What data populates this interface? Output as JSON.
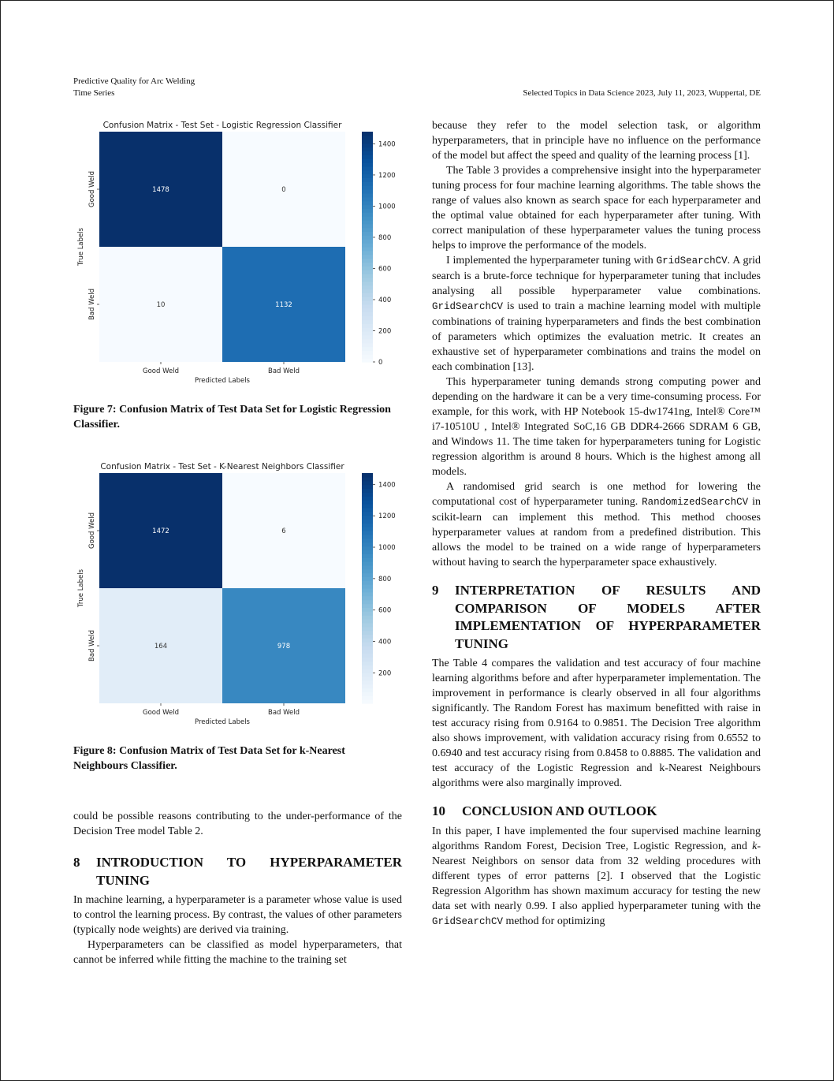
{
  "header": {
    "left_line1": "Predictive Quality for Arc Welding",
    "left_line2": "Time Series",
    "right": "Selected Topics in Data Science 2023, July 11, 2023, Wuppertal, DE"
  },
  "figure7": {
    "caption": "Figure 7: Confusion Matrix of Test Data Set for Logistic Regression Classifier.",
    "chart_data": {
      "type": "heatmap",
      "title": "Confusion Matrix - Test Set - Logistic Regression Classifier",
      "xlabel": "Predicted Labels",
      "ylabel": "True Labels",
      "x_categories": [
        "Good Weld",
        "Bad Weld"
      ],
      "y_categories": [
        "Good Weld",
        "Bad Weld"
      ],
      "values": [
        [
          1478,
          0
        ],
        [
          10,
          1132
        ]
      ],
      "colorbar_ticks": [
        0,
        200,
        400,
        600,
        800,
        1000,
        1200,
        1400
      ],
      "colorbar_range": [
        0,
        1478
      ],
      "colormap": "Blues"
    }
  },
  "figure8": {
    "caption": "Figure 8: Confusion Matrix of Test Data Set for k-Nearest Neighbours Classifier.",
    "chart_data": {
      "type": "heatmap",
      "title": "Confusion Matrix - Test Set - K-Nearest Neighbors Classifier",
      "xlabel": "Predicted Labels",
      "ylabel": "True Labels",
      "x_categories": [
        "Good Weld",
        "Bad Weld"
      ],
      "y_categories": [
        "Good Weld",
        "Bad Weld"
      ],
      "values": [
        [
          1472,
          6
        ],
        [
          164,
          978
        ]
      ],
      "colorbar_ticks": [
        200,
        400,
        600,
        800,
        1000,
        1200,
        1400
      ],
      "colorbar_range": [
        6,
        1472
      ],
      "colormap": "Blues"
    }
  },
  "left_text": {
    "p1": "could be possible reasons contributing to the under-performance of the Decision Tree model Table 2.",
    "sec8_num": "8",
    "sec8_title": "INTRODUCTION TO HYPERPARAMETER TUNING",
    "p2": "In machine learning, a hyperparameter is a parameter whose value is used to control the learning process. By contrast, the values of other parameters (typically node weights) are derived via training.",
    "p3": "Hyperparameters can be classified as model hyperparameters, that cannot be inferred while fitting the machine to the training set"
  },
  "right_text": {
    "p1": "because they refer to the model selection task, or algorithm hyperparameters, that in principle have no influence on the performance of the model but affect the speed and quality of the learning process [1].",
    "p2": "The Table 3 provides a comprehensive insight into the hyperparameter tuning process for four machine learning algorithms. The table shows the range of values also known as search space for each hyperparameter and the optimal value obtained for each hyperparameter after tuning. With correct manipulation of these hyperparameter values the tuning process helps to improve the performance of the models.",
    "p3_a": "I implemented the hyperparameter tuning with ",
    "p3_code1": "GridSearchCV",
    "p3_b": ". A grid search is a brute-force technique for hyperparameter tuning that includes analysing all possible hyperparameter value combinations. ",
    "p3_code2": "GridSearchCV",
    "p3_c": " is used to train a machine learning model with multiple combinations of training hyperparameters and finds the best combination of parameters which optimizes the evaluation metric. It creates an exhaustive set of hyperparameter combinations and trains the model on each combination [13].",
    "p4": "This hyperparameter tuning demands strong computing power and depending on the hardware it can be a very time-consuming process. For example, for this work, with HP Notebook 15-dw1741ng, Intel® Core™ i7-10510U , Intel® Integrated SoC,16 GB DDR4-2666 SDRAM 6 GB, and Windows 11. The time taken for hyperparameters tuning for Logistic regression algorithm is around 8 hours. Which is the highest among all models.",
    "p5_a": "A randomised grid search is one method for lowering the computational cost of hyperparameter tuning. ",
    "p5_code": "RandomizedSearchCV",
    "p5_b": " in scikit-learn can implement this method. This method chooses hyperparameter values at random from a predefined distribution. This allows the model to be trained on a wide range of hyperparameters without having to search the hyperparameter space exhaustively.",
    "sec9_num": "9",
    "sec9_title": "INTERPRETATION OF RESULTS AND COMPARISON OF MODELS AFTER IMPLEMENTATION OF HYPERPARAMETER TUNING",
    "p6": "The Table 4 compares the validation and test accuracy of four machine learning algorithms before and after hyperparameter implementation. The improvement in performance is clearly observed in all four algorithms significantly. The Random Forest has maximum benefitted with raise in test accuracy rising from 0.9164 to 0.9851. The Decision Tree algorithm also shows improvement, with validation accuracy rising from 0.6552 to 0.6940 and test accuracy rising from 0.8458 to 0.8885. The validation and test accuracy of the Logistic Regression and k-Nearest Neighbours algorithms were also marginally improved.",
    "sec10_num": "10",
    "sec10_title": "CONCLUSION AND OUTLOOK",
    "p7_a": "In this paper, I have implemented the four supervised machine learning algorithms Random Forest, Decision Tree, Logistic Regression, and ",
    "p7_k": "k",
    "p7_b": "-Nearest Neighbors on sensor data from 32 welding procedures with different types of error patterns [2]. I observed that the Logistic Regression Algorithm has shown maximum accuracy for testing the new data set with nearly 0.99. I also applied hyperparameter tuning with the ",
    "p7_code": "GridSearchCV",
    "p7_c": " method for optimizing"
  }
}
